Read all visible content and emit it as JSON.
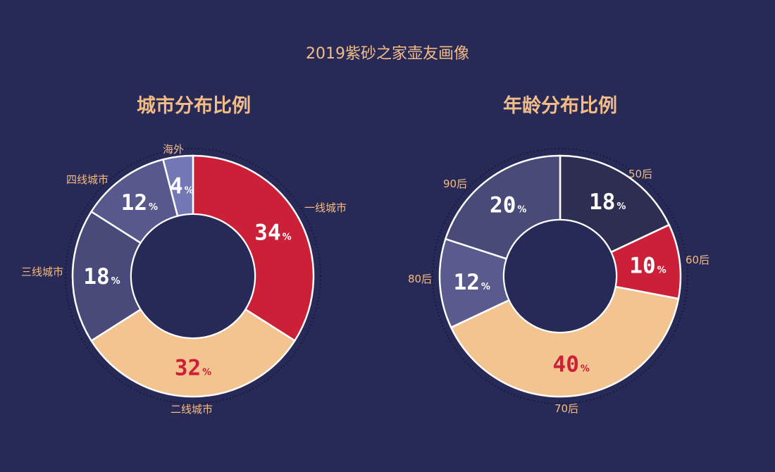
{
  "title": "2019紫砂之家壶友画像",
  "chart_data": [
    {
      "type": "pie",
      "title": "城市分布比例",
      "categories": [
        "一线城市",
        "二线城市",
        "三线城市",
        "四线城市",
        "海外"
      ],
      "values": [
        34,
        32,
        18,
        12,
        4
      ],
      "unit": "%",
      "colors": [
        "#cc1f38",
        "#f4c490",
        "#4a4a7a",
        "#58588c",
        "#7378b4"
      ],
      "value_label_colors": [
        "#ffffff",
        "#cc1f38",
        "#ffffff",
        "#ffffff",
        "#ffffff"
      ]
    },
    {
      "type": "pie",
      "title": "年龄分布比例",
      "categories": [
        "50后",
        "60后",
        "70后",
        "80后",
        "90后"
      ],
      "values": [
        18,
        10,
        40,
        12,
        20
      ],
      "unit": "%",
      "colors": [
        "#2d2e52",
        "#cc1f38",
        "#f4c490",
        "#5a5a8e",
        "#4a4a78"
      ],
      "value_label_colors": [
        "#ffffff",
        "#ffffff",
        "#cc1f38",
        "#ffffff",
        "#ffffff"
      ]
    }
  ]
}
